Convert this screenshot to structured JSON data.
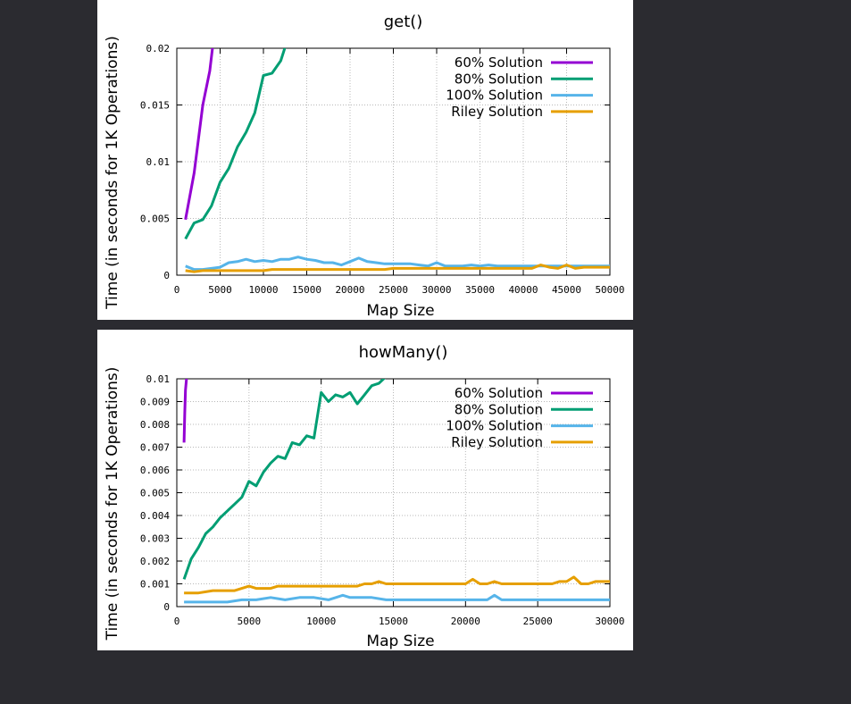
{
  "colors": {
    "background": "#2b2b30",
    "panel": "#ffffff",
    "grid": "#b8b8b8",
    "s60": "#9400d3",
    "s80": "#009e73",
    "s100": "#56b4e9",
    "riley": "#e69f00"
  },
  "chart_data": [
    {
      "type": "line",
      "title": "get()",
      "xlabel": "Map Size",
      "ylabel": "Time (in seconds for 1K Operations)",
      "xlim": [
        0,
        50000
      ],
      "ylim": [
        0,
        0.02
      ],
      "xticks": [
        0,
        5000,
        10000,
        15000,
        20000,
        25000,
        30000,
        35000,
        40000,
        45000,
        50000
      ],
      "yticks": [
        0,
        0.005,
        0.01,
        0.015,
        0.02
      ],
      "ytick_labels": [
        "0",
        "0.005",
        "0.01",
        "0.015",
        "0.02"
      ],
      "grid": true,
      "legend_position": "top-right",
      "series": [
        {
          "name": "60% Solution",
          "color": "#9400d3",
          "x": [
            1000,
            2000,
            3000,
            3800,
            4200
          ],
          "y": [
            0.0049,
            0.009,
            0.015,
            0.018,
            0.0205
          ]
        },
        {
          "name": "80% Solution",
          "color": "#009e73",
          "x": [
            1000,
            2000,
            3000,
            4000,
            5000,
            6000,
            7000,
            8000,
            9000,
            10000,
            11000,
            12000,
            12500
          ],
          "y": [
            0.0032,
            0.0046,
            0.0049,
            0.0061,
            0.0082,
            0.0094,
            0.0113,
            0.0126,
            0.0143,
            0.0176,
            0.0178,
            0.0189,
            0.0201
          ]
        },
        {
          "name": "100% Solution",
          "color": "#56b4e9",
          "x": [
            1000,
            2000,
            3000,
            4000,
            5000,
            6000,
            7000,
            8000,
            9000,
            10000,
            11000,
            12000,
            13000,
            14000,
            15000,
            16000,
            17000,
            18000,
            19000,
            20000,
            21000,
            22000,
            23000,
            24000,
            25000,
            26000,
            27000,
            28000,
            29000,
            30000,
            31000,
            32000,
            33000,
            34000,
            35000,
            36000,
            37000,
            38000,
            39000,
            40000,
            41000,
            42000,
            43000,
            44000,
            45000,
            46000,
            47000,
            48000,
            49000,
            50000
          ],
          "y": [
            0.0008,
            0.0005,
            0.0005,
            0.0006,
            0.0007,
            0.0011,
            0.0012,
            0.0014,
            0.0012,
            0.0013,
            0.0012,
            0.0014,
            0.0014,
            0.0016,
            0.0014,
            0.0013,
            0.0011,
            0.0011,
            0.0009,
            0.0012,
            0.0015,
            0.0012,
            0.0011,
            0.001,
            0.001,
            0.001,
            0.001,
            0.0009,
            0.0008,
            0.0011,
            0.0008,
            0.0008,
            0.0008,
            0.0009,
            0.0008,
            0.0009,
            0.0008,
            0.0008,
            0.0008,
            0.0008,
            0.0008,
            0.0008,
            0.0008,
            0.0008,
            0.0008,
            0.0008,
            0.0008,
            0.0008,
            0.0008,
            0.0008
          ]
        },
        {
          "name": "Riley Solution",
          "color": "#e69f00",
          "x": [
            1000,
            2000,
            3000,
            4000,
            5000,
            6000,
            7000,
            8000,
            9000,
            10000,
            11000,
            12000,
            13000,
            14000,
            15000,
            16000,
            17000,
            18000,
            19000,
            20000,
            21000,
            22000,
            23000,
            24000,
            25000,
            26000,
            27000,
            28000,
            29000,
            30000,
            31000,
            32000,
            33000,
            34000,
            35000,
            36000,
            37000,
            38000,
            39000,
            40000,
            41000,
            42000,
            43000,
            44000,
            45000,
            46000,
            47000,
            48000,
            49000,
            50000
          ],
          "y": [
            0.0004,
            0.0003,
            0.0004,
            0.0004,
            0.0004,
            0.0004,
            0.0004,
            0.0004,
            0.0004,
            0.0004,
            0.0005,
            0.0005,
            0.0005,
            0.0005,
            0.0005,
            0.0005,
            0.0005,
            0.0005,
            0.0005,
            0.0005,
            0.0005,
            0.0005,
            0.0005,
            0.0005,
            0.0006,
            0.0006,
            0.0006,
            0.0006,
            0.0006,
            0.0006,
            0.0006,
            0.0006,
            0.0006,
            0.0006,
            0.0006,
            0.0006,
            0.0006,
            0.0006,
            0.0006,
            0.0006,
            0.0006,
            0.0009,
            0.0007,
            0.0006,
            0.0009,
            0.0006,
            0.0007,
            0.0007,
            0.0007,
            0.0007
          ]
        }
      ]
    },
    {
      "type": "line",
      "title": "howMany()",
      "xlabel": "Map Size",
      "ylabel": "Time (in seconds for 1K Operations)",
      "xlim": [
        0,
        30000
      ],
      "ylim": [
        0,
        0.01
      ],
      "xticks": [
        0,
        5000,
        10000,
        15000,
        20000,
        25000,
        30000
      ],
      "yticks": [
        0,
        0.001,
        0.002,
        0.003,
        0.004,
        0.005,
        0.006,
        0.007,
        0.008,
        0.009,
        0.01
      ],
      "ytick_labels": [
        "0",
        "0.001",
        "0.002",
        "0.003",
        "0.004",
        "0.005",
        "0.006",
        "0.007",
        "0.008",
        "0.009",
        "0.01"
      ],
      "grid": true,
      "legend_position": "top-right",
      "series": [
        {
          "name": "60% Solution",
          "color": "#9400d3",
          "x": [
            500,
            550,
            600,
            700
          ],
          "y": [
            0.0072,
            0.0085,
            0.0095,
            0.0102
          ]
        },
        {
          "name": "80% Solution",
          "color": "#009e73",
          "x": [
            500,
            1000,
            1500,
            2000,
            2500,
            3000,
            3500,
            4000,
            4500,
            5000,
            5500,
            6000,
            6500,
            7000,
            7500,
            8000,
            8500,
            9000,
            9500,
            10000,
            10500,
            11000,
            11500,
            12000,
            12500,
            13000,
            13500,
            14000,
            14500
          ],
          "y": [
            0.0012,
            0.0021,
            0.0026,
            0.0032,
            0.0035,
            0.0039,
            0.0042,
            0.0045,
            0.0048,
            0.0055,
            0.0053,
            0.0059,
            0.0063,
            0.0066,
            0.0065,
            0.0072,
            0.0071,
            0.0075,
            0.0074,
            0.0094,
            0.009,
            0.0093,
            0.0092,
            0.0094,
            0.0089,
            0.0093,
            0.0097,
            0.0098,
            0.0101
          ]
        },
        {
          "name": "100% Solution",
          "color": "#56b4e9",
          "x": [
            500,
            1500,
            2500,
            3500,
            4500,
            5500,
            6500,
            7500,
            8500,
            9500,
            10500,
            11500,
            12000,
            12500,
            13500,
            14500,
            15500,
            16500,
            17500,
            18500,
            19500,
            20500,
            21500,
            22000,
            22500,
            23500,
            24500,
            25500,
            26500,
            27500,
            28500,
            29500,
            30000
          ],
          "y": [
            0.0002,
            0.0002,
            0.0002,
            0.0002,
            0.0003,
            0.0003,
            0.0004,
            0.0003,
            0.0004,
            0.0004,
            0.0003,
            0.0005,
            0.0004,
            0.0004,
            0.0004,
            0.0003,
            0.0003,
            0.0003,
            0.0003,
            0.0003,
            0.0003,
            0.0003,
            0.0003,
            0.0005,
            0.0003,
            0.0003,
            0.0003,
            0.0003,
            0.0003,
            0.0003,
            0.0003,
            0.0003,
            0.0003
          ]
        },
        {
          "name": "Riley Solution",
          "color": "#e69f00",
          "x": [
            500,
            1500,
            2500,
            3500,
            4000,
            4500,
            5000,
            5500,
            6000,
            6500,
            7000,
            7500,
            8000,
            8500,
            9000,
            9500,
            10000,
            10500,
            11000,
            11500,
            12000,
            12500,
            13000,
            13500,
            14000,
            14500,
            15000,
            15500,
            16000,
            16500,
            17000,
            17500,
            18000,
            18500,
            19000,
            19500,
            20000,
            20500,
            21000,
            21500,
            22000,
            22500,
            23000,
            23500,
            24000,
            24500,
            25000,
            25500,
            26000,
            26500,
            27000,
            27500,
            28000,
            28500,
            29000,
            29500,
            30000
          ],
          "y": [
            0.0006,
            0.0006,
            0.0007,
            0.0007,
            0.0007,
            0.0008,
            0.0009,
            0.0008,
            0.0008,
            0.0008,
            0.0009,
            0.0009,
            0.0009,
            0.0009,
            0.0009,
            0.0009,
            0.0009,
            0.0009,
            0.0009,
            0.0009,
            0.0009,
            0.0009,
            0.001,
            0.001,
            0.0011,
            0.001,
            0.001,
            0.001,
            0.001,
            0.001,
            0.001,
            0.001,
            0.001,
            0.001,
            0.001,
            0.001,
            0.001,
            0.0012,
            0.001,
            0.001,
            0.0011,
            0.001,
            0.001,
            0.001,
            0.001,
            0.001,
            0.001,
            0.001,
            0.001,
            0.0011,
            0.0011,
            0.0013,
            0.001,
            0.001,
            0.0011,
            0.0011,
            0.0011
          ]
        }
      ]
    }
  ]
}
